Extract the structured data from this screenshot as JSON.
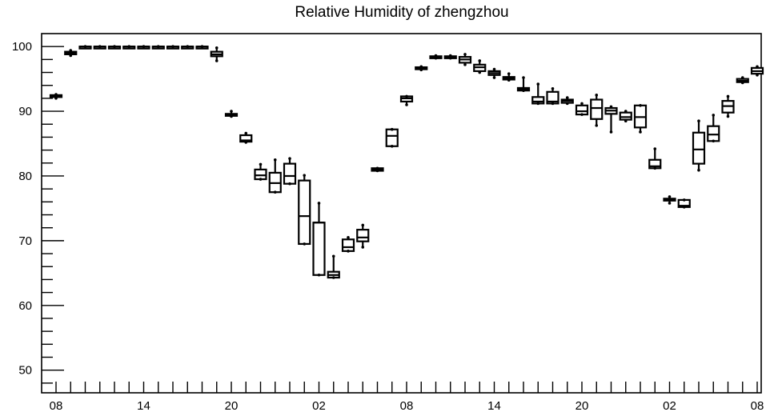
{
  "chart_data": {
    "type": "box",
    "title": "Relative Humidity of zhengzhou",
    "xlabel": "",
    "ylabel": "",
    "ylim": [
      46.5,
      102
    ],
    "y_ticks": [
      50,
      60,
      70,
      80,
      90,
      100
    ],
    "x_tick_labels": [
      "08",
      "14",
      "20",
      "02",
      "08",
      "14",
      "20",
      "02",
      "08"
    ],
    "x_tick_label_positions": [
      0,
      6,
      12,
      18,
      24,
      30,
      36,
      42,
      48
    ],
    "grid": false,
    "boxes": [
      {
        "x": 0,
        "q1": 92.2,
        "median": 92.3,
        "q3": 92.5,
        "low": 92.0,
        "high": 92.6
      },
      {
        "x": 1,
        "q1": 98.8,
        "median": 99.0,
        "q3": 99.2,
        "low": 98.6,
        "high": 99.4
      },
      {
        "x": 2,
        "q1": 100,
        "median": 100,
        "q3": 100,
        "low": 100,
        "high": 100
      },
      {
        "x": 3,
        "q1": 100,
        "median": 100,
        "q3": 100,
        "low": 100,
        "high": 100
      },
      {
        "x": 4,
        "q1": 100,
        "median": 100,
        "q3": 100,
        "low": 100,
        "high": 100
      },
      {
        "x": 5,
        "q1": 100,
        "median": 100,
        "q3": 100,
        "low": 100,
        "high": 100
      },
      {
        "x": 6,
        "q1": 100,
        "median": 100,
        "q3": 100,
        "low": 100,
        "high": 100
      },
      {
        "x": 7,
        "q1": 100,
        "median": 100,
        "q3": 100,
        "low": 100,
        "high": 100
      },
      {
        "x": 8,
        "q1": 100,
        "median": 100,
        "q3": 100,
        "low": 100,
        "high": 100
      },
      {
        "x": 9,
        "q1": 100,
        "median": 100,
        "q3": 100,
        "low": 100,
        "high": 100
      },
      {
        "x": 10,
        "q1": 100,
        "median": 100,
        "q3": 100,
        "low": 100,
        "high": 100
      },
      {
        "x": 11,
        "q1": 98.5,
        "median": 98.8,
        "q3": 99.2,
        "low": 97.8,
        "high": 99.8
      },
      {
        "x": 12,
        "q1": 89.3,
        "median": 89.4,
        "q3": 89.6,
        "low": 89.2,
        "high": 90.0
      },
      {
        "x": 13,
        "q1": 85.3,
        "median": 85.5,
        "q3": 86.3,
        "low": 85.2,
        "high": 86.6
      },
      {
        "x": 14,
        "q1": 79.5,
        "median": 80.1,
        "q3": 81.0,
        "low": 79.5,
        "high": 81.8
      },
      {
        "x": 15,
        "q1": 77.5,
        "median": 78.9,
        "q3": 80.5,
        "low": 77.5,
        "high": 82.5
      },
      {
        "x": 16,
        "q1": 78.8,
        "median": 80.0,
        "q3": 81.9,
        "low": 78.8,
        "high": 82.7
      },
      {
        "x": 17,
        "q1": 69.5,
        "median": 73.8,
        "q3": 79.3,
        "low": 69.5,
        "high": 80.1
      },
      {
        "x": 18,
        "q1": 64.7,
        "median": 72.8,
        "q3": 72.8,
        "low": 64.7,
        "high": 75.8
      },
      {
        "x": 19,
        "q1": 64.3,
        "median": 64.7,
        "q3": 65.2,
        "low": 64.3,
        "high": 67.6
      },
      {
        "x": 20,
        "q1": 68.4,
        "median": 69.0,
        "q3": 70.2,
        "low": 68.4,
        "high": 70.5
      },
      {
        "x": 21,
        "q1": 69.9,
        "median": 70.5,
        "q3": 71.7,
        "low": 69.0,
        "high": 72.4
      },
      {
        "x": 22,
        "q1": 80.8,
        "median": 81.0,
        "q3": 81.2,
        "low": 80.8,
        "high": 81.2
      },
      {
        "x": 23,
        "q1": 84.6,
        "median": 86.2,
        "q3": 87.2,
        "low": 84.6,
        "high": 87.2
      },
      {
        "x": 24,
        "q1": 91.5,
        "median": 92.0,
        "q3": 92.3,
        "low": 91.0,
        "high": 92.3
      },
      {
        "x": 25,
        "q1": 96.5,
        "median": 96.6,
        "q3": 96.8,
        "low": 96.4,
        "high": 96.9
      },
      {
        "x": 26,
        "q1": 98.2,
        "median": 98.4,
        "q3": 98.5,
        "low": 98.2,
        "high": 98.6
      },
      {
        "x": 27,
        "q1": 98.3,
        "median": 98.4,
        "q3": 98.5,
        "low": 98.2,
        "high": 98.6
      },
      {
        "x": 28,
        "q1": 97.5,
        "median": 98.0,
        "q3": 98.4,
        "low": 97.2,
        "high": 98.8
      },
      {
        "x": 29,
        "q1": 96.2,
        "median": 96.8,
        "q3": 97.2,
        "low": 96.0,
        "high": 97.8
      },
      {
        "x": 30,
        "q1": 95.6,
        "median": 95.9,
        "q3": 96.2,
        "low": 95.2,
        "high": 96.5
      },
      {
        "x": 31,
        "q1": 94.9,
        "median": 95.1,
        "q3": 95.3,
        "low": 94.8,
        "high": 95.8
      },
      {
        "x": 32,
        "q1": 93.2,
        "median": 93.4,
        "q3": 93.6,
        "low": 93.2,
        "high": 95.2
      },
      {
        "x": 33,
        "q1": 91.2,
        "median": 91.5,
        "q3": 92.2,
        "low": 91.2,
        "high": 94.2
      },
      {
        "x": 34,
        "q1": 91.2,
        "median": 91.5,
        "q3": 93.0,
        "low": 91.2,
        "high": 93.5
      },
      {
        "x": 35,
        "q1": 91.3,
        "median": 91.6,
        "q3": 91.8,
        "low": 91.2,
        "high": 92.1
      },
      {
        "x": 36,
        "q1": 89.5,
        "median": 90.0,
        "q3": 90.9,
        "low": 89.5,
        "high": 91.2
      },
      {
        "x": 37,
        "q1": 88.8,
        "median": 90.5,
        "q3": 91.8,
        "low": 87.8,
        "high": 92.5
      },
      {
        "x": 38,
        "q1": 89.6,
        "median": 90.1,
        "q3": 90.5,
        "low": 86.8,
        "high": 90.7
      },
      {
        "x": 39,
        "q1": 88.7,
        "median": 89.1,
        "q3": 89.8,
        "low": 88.5,
        "high": 90.0
      },
      {
        "x": 40,
        "q1": 87.5,
        "median": 89.1,
        "q3": 90.9,
        "low": 86.8,
        "high": 90.9
      },
      {
        "x": 41,
        "q1": 81.2,
        "median": 81.5,
        "q3": 82.5,
        "low": 81.2,
        "high": 84.2
      },
      {
        "x": 42,
        "q1": 76.3,
        "median": 76.4,
        "q3": 76.5,
        "low": 75.8,
        "high": 76.8
      },
      {
        "x": 43,
        "q1": 75.2,
        "median": 75.4,
        "q3": 76.3,
        "low": 75.2,
        "high": 76.3
      },
      {
        "x": 44,
        "q1": 81.9,
        "median": 84.1,
        "q3": 86.7,
        "low": 80.9,
        "high": 88.5
      },
      {
        "x": 45,
        "q1": 85.4,
        "median": 86.4,
        "q3": 87.7,
        "low": 85.4,
        "high": 89.4
      },
      {
        "x": 46,
        "q1": 89.8,
        "median": 90.8,
        "q3": 91.6,
        "low": 89.2,
        "high": 92.3
      },
      {
        "x": 47,
        "q1": 94.5,
        "median": 94.7,
        "q3": 95.0,
        "low": 94.4,
        "high": 95.2
      },
      {
        "x": 48,
        "q1": 95.8,
        "median": 96.2,
        "q3": 96.7,
        "low": 95.6,
        "high": 96.9
      }
    ]
  }
}
